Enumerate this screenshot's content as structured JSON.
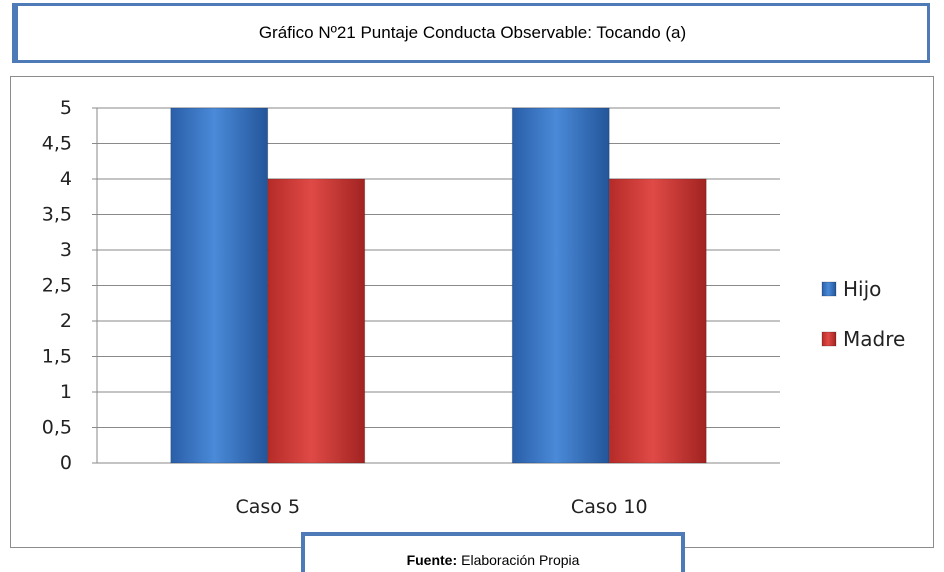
{
  "title": "Gráfico Nº21 Puntaje Conducta Observable: Tocando (a)",
  "source": {
    "label": "Fuente:",
    "text": "Elaboración Propia"
  },
  "chart_data": {
    "type": "bar",
    "categories": [
      "Caso 5",
      "Caso 10"
    ],
    "series": [
      {
        "name": "Hijo",
        "values": [
          5,
          5
        ],
        "color": "#3d7cc9"
      },
      {
        "name": "Madre",
        "values": [
          4,
          4
        ],
        "color": "#d13a36"
      }
    ],
    "ylim": [
      0,
      5
    ],
    "yticks": [
      "0",
      "0,5",
      "1",
      "1,5",
      "2",
      "2,5",
      "3",
      "3,5",
      "4",
      "4,5",
      "5"
    ],
    "grid": true,
    "legend": "right"
  }
}
